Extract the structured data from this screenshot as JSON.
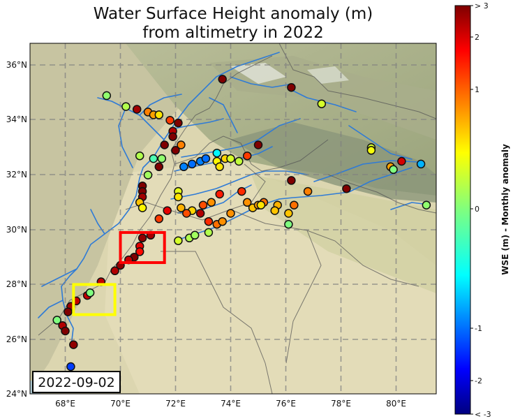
{
  "title_line1": "Water Surface Height anomaly (m)",
  "title_line2": "from altimetry in 2022",
  "date": "2022-09-02",
  "colorbar": {
    "label": "WSE (m) - Monthly anomaly",
    "ticks": [
      "> 3",
      "2",
      "1",
      "0",
      "-1",
      "-2",
      "< -3"
    ],
    "colormap": "jet"
  },
  "axes": {
    "lon_ticks": [
      "68°E",
      "70°E",
      "72°E",
      "74°E",
      "76°E",
      "78°E",
      "80°E"
    ],
    "lat_ticks": [
      "36°N",
      "34°N",
      "32°N",
      "30°N",
      "28°N",
      "26°N",
      "24°N"
    ],
    "lon_range": [
      66.8,
      81.5
    ],
    "lat_range": [
      24,
      36.8
    ],
    "grid": true
  },
  "highlight_boxes": [
    {
      "color": "#ff0000",
      "lon": [
        70.0,
        71.6
      ],
      "lat": [
        28.8,
        29.9
      ]
    },
    {
      "color": "#ffff00",
      "lon": [
        68.3,
        69.8
      ],
      "lat": [
        26.9,
        28.0
      ]
    }
  ],
  "chart_data": {
    "type": "scatter",
    "points": [
      [
        69.5,
        34.9,
        0.1
      ],
      [
        70.2,
        34.5,
        0.3
      ],
      [
        70.6,
        34.4,
        2.8
      ],
      [
        71.0,
        34.3,
        1.5
      ],
      [
        71.2,
        34.2,
        1.3
      ],
      [
        71.4,
        34.2,
        0.9
      ],
      [
        71.8,
        34.0,
        1.9
      ],
      [
        72.1,
        33.9,
        3.2
      ],
      [
        71.9,
        33.6,
        2.7
      ],
      [
        71.9,
        33.4,
        3.0
      ],
      [
        71.6,
        33.1,
        3.0
      ],
      [
        72.2,
        33.1,
        1.5
      ],
      [
        72.0,
        32.9,
        3.1
      ],
      [
        70.7,
        32.7,
        0.3
      ],
      [
        71.2,
        32.6,
        -0.3
      ],
      [
        71.5,
        32.6,
        0.1
      ],
      [
        71.4,
        32.3,
        3.0
      ],
      [
        72.3,
        32.3,
        -1.5
      ],
      [
        72.6,
        32.4,
        -1.6
      ],
      [
        72.9,
        32.5,
        -1.5
      ],
      [
        73.1,
        32.6,
        -1.6
      ],
      [
        73.5,
        32.8,
        -0.8
      ],
      [
        73.5,
        32.5,
        0.8
      ],
      [
        73.6,
        32.3,
        0.9
      ],
      [
        73.8,
        32.6,
        1.0
      ],
      [
        74.0,
        32.6,
        0.5
      ],
      [
        74.3,
        32.5,
        0.4
      ],
      [
        74.6,
        32.7,
        1.9
      ],
      [
        75.0,
        33.1,
        3.0
      ],
      [
        71.0,
        32.0,
        0.2
      ],
      [
        70.8,
        31.6,
        3.2
      ],
      [
        70.8,
        31.4,
        3.1
      ],
      [
        70.8,
        31.2,
        2.8
      ],
      [
        70.7,
        31.0,
        1.1
      ],
      [
        70.8,
        30.8,
        0.8
      ],
      [
        72.1,
        31.4,
        0.6
      ],
      [
        72.1,
        31.2,
        0.9
      ],
      [
        72.2,
        30.8,
        1.2
      ],
      [
        72.6,
        30.7,
        1.0
      ],
      [
        73.0,
        30.9,
        1.8
      ],
      [
        73.3,
        31.0,
        1.4
      ],
      [
        73.6,
        31.3,
        2.1
      ],
      [
        74.4,
        31.4,
        2.0
      ],
      [
        74.6,
        31.0,
        1.4
      ],
      [
        74.8,
        30.8,
        1.1
      ],
      [
        75.2,
        31.0,
        1.6
      ],
      [
        75.7,
        30.9,
        1.2
      ],
      [
        76.3,
        30.9,
        1.6
      ],
      [
        72.4,
        30.6,
        1.8
      ],
      [
        72.9,
        30.6,
        2.7
      ],
      [
        73.2,
        30.3,
        2.0
      ],
      [
        73.5,
        30.2,
        1.6
      ],
      [
        74.0,
        30.6,
        1.4
      ],
      [
        75.0,
        30.9,
        1.3
      ],
      [
        75.1,
        30.9,
        0.9
      ],
      [
        75.6,
        30.7,
        1.1
      ],
      [
        76.1,
        30.6,
        1.1
      ],
      [
        76.1,
        30.2,
        0.0
      ],
      [
        71.7,
        30.7,
        2.4
      ],
      [
        71.4,
        30.4,
        1.9
      ],
      [
        71.1,
        29.8,
        2.8
      ],
      [
        70.8,
        29.7,
        2.9
      ],
      [
        70.7,
        29.4,
        2.4
      ],
      [
        70.7,
        29.2,
        2.2
      ],
      [
        70.5,
        29.0,
        3.0
      ],
      [
        70.3,
        28.9,
        2.6
      ],
      [
        70.0,
        28.7,
        2.9
      ],
      [
        69.8,
        28.5,
        2.7
      ],
      [
        72.1,
        29.6,
        0.5
      ],
      [
        72.5,
        29.7,
        0.3
      ],
      [
        72.7,
        29.8,
        0.2
      ],
      [
        73.2,
        29.9,
        0.3
      ],
      [
        73.7,
        30.3,
        1.4
      ],
      [
        69.3,
        28.1,
        2.6
      ],
      [
        68.8,
        27.6,
        2.6
      ],
      [
        68.4,
        27.4,
        2.6
      ],
      [
        68.2,
        27.2,
        2.8
      ],
      [
        68.9,
        27.7,
        0.0
      ],
      [
        68.1,
        27.0,
        3.2
      ],
      [
        67.7,
        26.7,
        0.0
      ],
      [
        67.9,
        26.5,
        2.7
      ],
      [
        68.0,
        26.3,
        3.0
      ],
      [
        68.3,
        25.8,
        2.9
      ],
      [
        68.2,
        25.0,
        -1.9
      ],
      [
        73.7,
        35.5,
        3.2
      ],
      [
        76.2,
        35.2,
        3.1
      ],
      [
        77.3,
        34.6,
        0.5
      ],
      [
        79.1,
        33.0,
        0.5
      ],
      [
        79.1,
        32.9,
        0.7
      ],
      [
        79.8,
        32.3,
        1.3
      ],
      [
        79.9,
        32.2,
        0.0
      ],
      [
        80.2,
        32.5,
        2.5
      ],
      [
        80.9,
        32.4,
        -1.2
      ],
      [
        81.1,
        30.9,
        0.1
      ],
      [
        76.2,
        31.8,
        3.2
      ],
      [
        76.8,
        31.4,
        1.5
      ],
      [
        78.2,
        31.5,
        3.2
      ]
    ]
  }
}
